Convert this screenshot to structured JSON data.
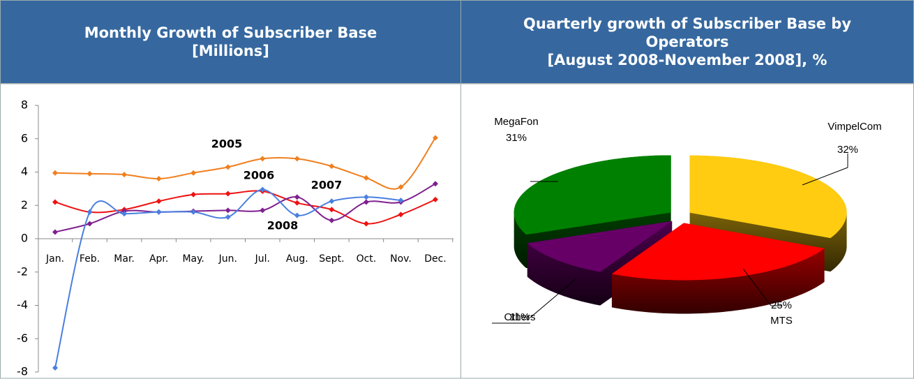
{
  "chart_data": [
    {
      "type": "line",
      "title": "Monthly Growth of Subscriber Base",
      "subtitle": "[Millions]",
      "categories": [
        "Jan.",
        "Feb.",
        "Mar.",
        "Apr.",
        "May.",
        "Jun.",
        "Jul.",
        "Aug.",
        "Sept.",
        "Oct.",
        "Nov.",
        "Dec."
      ],
      "ylim": [
        -8,
        8
      ],
      "yticks": [
        -8,
        -6,
        -4,
        -2,
        0,
        2,
        4,
        6,
        8
      ],
      "grid": false,
      "smooth": true,
      "series": [
        {
          "name": "2005",
          "color": "#f07f1e",
          "values": [
            3.95,
            3.9,
            3.85,
            3.6,
            3.95,
            4.3,
            4.8,
            4.8,
            4.35,
            3.65,
            3.1,
            6.05
          ]
        },
        {
          "name": "2006",
          "color": "#ee1111",
          "values": [
            2.2,
            1.6,
            1.75,
            2.25,
            2.65,
            2.7,
            2.85,
            2.15,
            1.75,
            0.9,
            1.45,
            2.35
          ]
        },
        {
          "name": "2007",
          "color": "#7f1f8f",
          "values": [
            0.4,
            0.9,
            1.65,
            1.6,
            1.65,
            1.7,
            1.7,
            2.5,
            1.1,
            2.2,
            2.2,
            3.3
          ]
        },
        {
          "name": "2008",
          "color": "#4a7fe0",
          "values": [
            -7.75,
            1.6,
            1.5,
            1.6,
            1.6,
            1.3,
            2.95,
            1.4,
            2.25,
            2.5,
            2.3,
            null
          ]
        }
      ]
    },
    {
      "type": "pie",
      "title": "Quarterly growth of Subscriber Base by Operators",
      "subtitle": "[August 2008-November 2008], %",
      "categories": [
        "VimpelCom",
        "MTS",
        "Others",
        "MegaFon"
      ],
      "values": [
        32,
        25,
        11,
        31
      ],
      "value_labels": [
        "32%",
        "25%",
        "11%",
        "31%"
      ],
      "colors": [
        "#ffcc11",
        "#ff0000",
        "#660066",
        "#008000"
      ],
      "three_d": true
    }
  ]
}
